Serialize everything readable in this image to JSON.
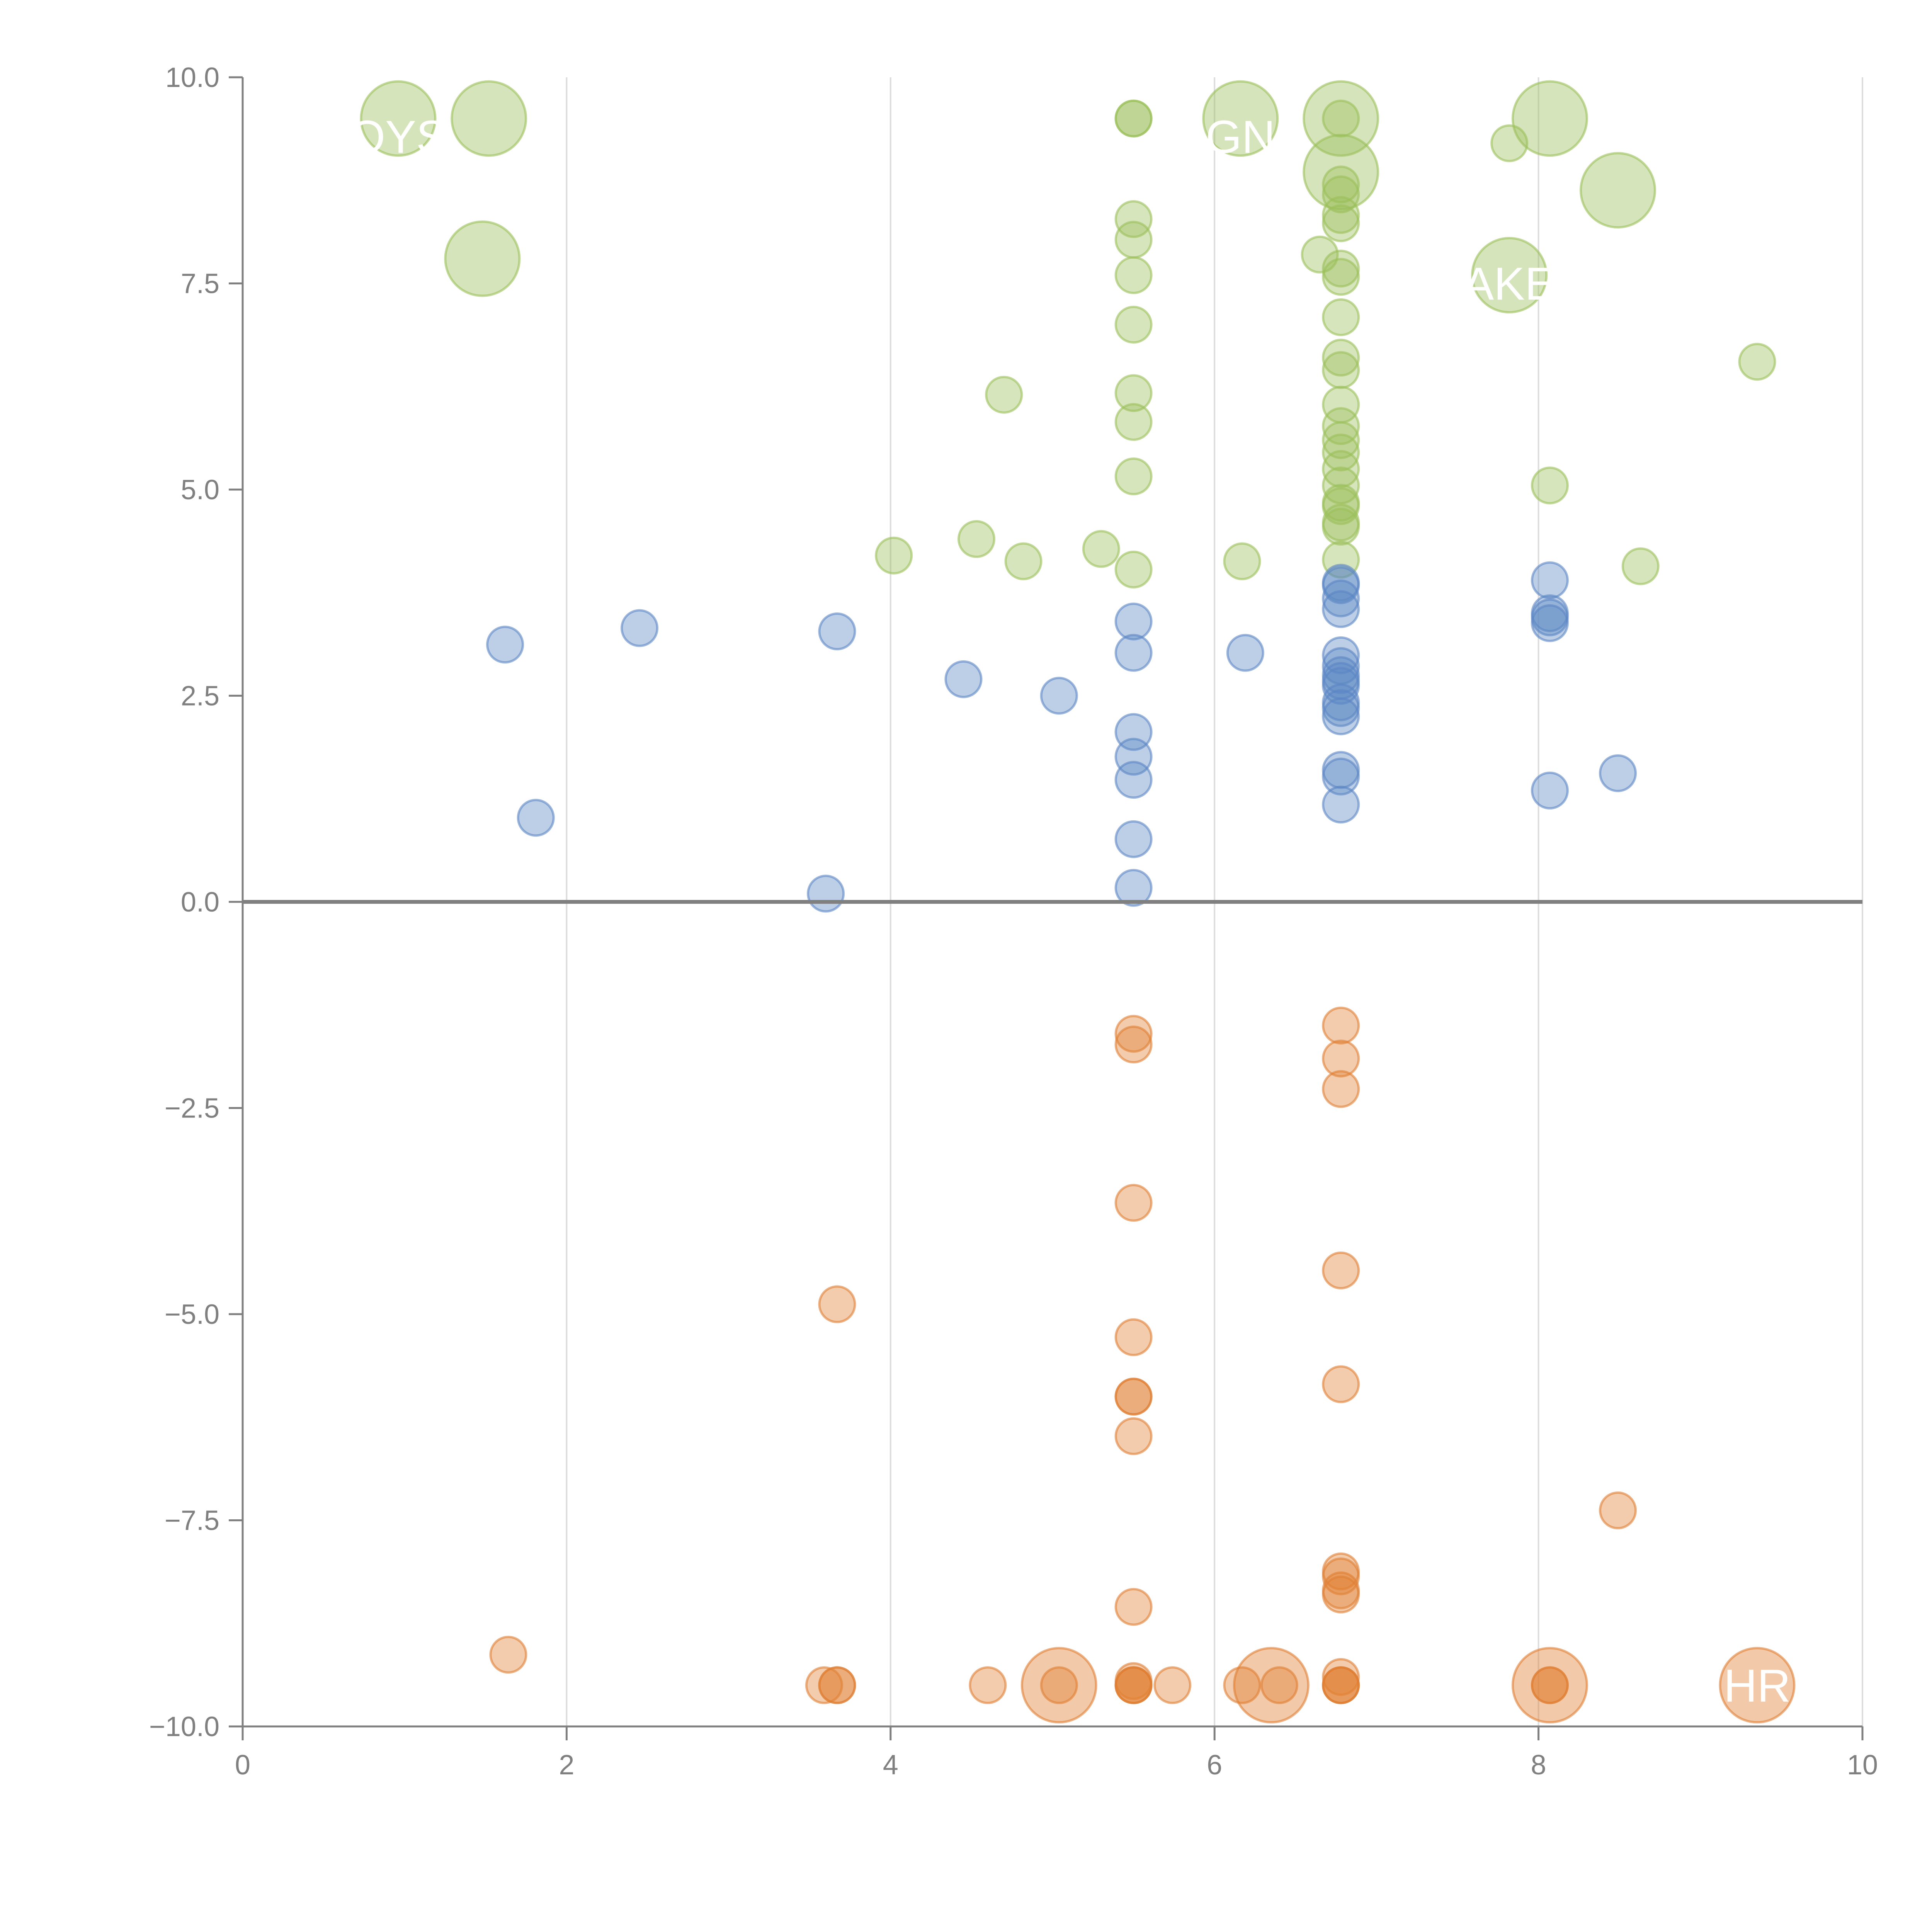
{
  "chart_data": {
    "type": "scatter",
    "title": "",
    "xlabel": "",
    "ylabel": "",
    "xlim": [
      0,
      10
    ],
    "ylim": [
      -10,
      10
    ],
    "x_ticks": [
      0,
      2,
      4,
      6,
      8,
      10
    ],
    "x_tick_labels": [
      "0",
      "2",
      "4",
      "6",
      "8",
      "10"
    ],
    "y_ticks": [
      -10,
      -7.5,
      -5,
      -2.5,
      0,
      2.5,
      5,
      7.5,
      10
    ],
    "y_tick_labels": [
      "−10.0",
      "−7.5",
      "−5.0",
      "−2.5",
      "0.0",
      "2.5",
      "5.0",
      "7.5",
      "10.0"
    ],
    "vertical_grid": true,
    "horizontal_grid": false,
    "zero_line": true,
    "legend": "none",
    "colors": {
      "green": "#9bbf5a",
      "blue": "#5b86c4",
      "orange": "#e07f33",
      "axis": "#808080",
      "grid": "#dddddd"
    },
    "series": [
      {
        "color": "green",
        "points": [
          [
            0.96,
            9.5,
            2
          ],
          [
            1.52,
            9.5,
            2
          ],
          [
            1.48,
            7.8,
            2
          ],
          [
            6.16,
            9.5,
            2
          ],
          [
            6.78,
            9.5,
            2
          ],
          [
            6.78,
            8.85,
            2
          ],
          [
            8.07,
            9.5,
            2
          ],
          [
            8.49,
            8.63,
            2
          ],
          [
            7.82,
            7.6,
            2
          ],
          [
            7.82,
            9.2,
            1
          ],
          [
            5.5,
            9.5,
            1
          ],
          [
            5.5,
            9.5,
            1
          ],
          [
            5.5,
            8.28,
            1
          ],
          [
            5.5,
            8.03,
            1
          ],
          [
            5.5,
            7.6,
            1
          ],
          [
            5.5,
            7.0,
            1
          ],
          [
            5.5,
            6.17,
            1
          ],
          [
            5.5,
            5.82,
            1
          ],
          [
            5.5,
            5.16,
            1
          ],
          [
            5.5,
            4.03,
            1
          ],
          [
            6.78,
            9.5,
            1
          ],
          [
            6.78,
            8.7,
            1
          ],
          [
            6.78,
            8.58,
            1
          ],
          [
            6.78,
            8.33,
            1
          ],
          [
            6.78,
            8.23,
            1
          ],
          [
            6.78,
            7.68,
            1
          ],
          [
            6.78,
            7.58,
            1
          ],
          [
            6.78,
            7.09,
            1
          ],
          [
            6.78,
            6.6,
            1
          ],
          [
            6.78,
            6.45,
            1
          ],
          [
            6.78,
            6.03,
            1
          ],
          [
            6.78,
            5.77,
            1
          ],
          [
            6.78,
            5.6,
            1
          ],
          [
            6.78,
            5.45,
            1
          ],
          [
            6.78,
            5.25,
            1
          ],
          [
            6.78,
            5.05,
            1
          ],
          [
            6.78,
            4.84,
            1
          ],
          [
            6.78,
            4.8,
            1
          ],
          [
            6.78,
            4.6,
            1
          ],
          [
            6.78,
            4.55,
            1
          ],
          [
            6.78,
            4.15,
            1
          ],
          [
            6.65,
            7.85,
            1
          ],
          [
            4.7,
            6.15,
            1
          ],
          [
            4.02,
            4.2,
            1
          ],
          [
            4.53,
            4.4,
            1
          ],
          [
            4.82,
            4.13,
            1
          ],
          [
            5.3,
            4.28,
            1
          ],
          [
            6.17,
            4.13,
            1
          ],
          [
            8.07,
            5.05,
            1
          ],
          [
            8.63,
            4.07,
            1
          ],
          [
            9.35,
            6.55,
            1
          ]
        ]
      },
      {
        "color": "blue",
        "points": [
          [
            1.62,
            3.12,
            1
          ],
          [
            1.81,
            1.02,
            1
          ],
          [
            2.45,
            3.32,
            1
          ],
          [
            3.67,
            3.28,
            1
          ],
          [
            3.6,
            0.1,
            1
          ],
          [
            4.45,
            2.7,
            1
          ],
          [
            5.04,
            2.5,
            1
          ],
          [
            5.5,
            3.4,
            1
          ],
          [
            5.5,
            3.02,
            1
          ],
          [
            5.5,
            2.06,
            1
          ],
          [
            5.5,
            1.76,
            1
          ],
          [
            5.5,
            1.48,
            1
          ],
          [
            5.5,
            0.76,
            1
          ],
          [
            5.5,
            0.17,
            1
          ],
          [
            6.19,
            3.02,
            1
          ],
          [
            6.78,
            3.87,
            1
          ],
          [
            6.78,
            3.84,
            1
          ],
          [
            6.78,
            3.68,
            1
          ],
          [
            6.78,
            3.55,
            1
          ],
          [
            6.78,
            2.99,
            1
          ],
          [
            6.78,
            2.86,
            1
          ],
          [
            6.78,
            2.75,
            1
          ],
          [
            6.78,
            2.68,
            1
          ],
          [
            6.78,
            2.62,
            1
          ],
          [
            6.78,
            2.42,
            1
          ],
          [
            6.78,
            2.35,
            1
          ],
          [
            6.78,
            2.25,
            1
          ],
          [
            6.78,
            1.6,
            1
          ],
          [
            6.78,
            1.52,
            1
          ],
          [
            6.78,
            1.18,
            1
          ],
          [
            8.07,
            3.9,
            1
          ],
          [
            8.07,
            3.5,
            1
          ],
          [
            8.07,
            3.45,
            1
          ],
          [
            8.07,
            3.38,
            1
          ],
          [
            8.07,
            1.35,
            1
          ],
          [
            8.49,
            1.56,
            1
          ]
        ]
      },
      {
        "color": "orange",
        "points": [
          [
            5.04,
            -9.5,
            2
          ],
          [
            6.35,
            -9.5,
            2
          ],
          [
            8.07,
            -9.5,
            2
          ],
          [
            9.35,
            -9.5,
            2
          ],
          [
            1.64,
            -9.13,
            1
          ],
          [
            3.59,
            -9.5,
            1
          ],
          [
            3.67,
            -9.5,
            1
          ],
          [
            3.67,
            -9.5,
            1
          ],
          [
            3.67,
            -4.88,
            1
          ],
          [
            4.6,
            -9.5,
            1
          ],
          [
            5.04,
            -9.5,
            1
          ],
          [
            5.5,
            -1.6,
            1
          ],
          [
            5.5,
            -1.73,
            1
          ],
          [
            5.5,
            -3.65,
            1
          ],
          [
            5.5,
            -5.28,
            1
          ],
          [
            5.5,
            -6.0,
            1
          ],
          [
            5.5,
            -6.0,
            1
          ],
          [
            5.5,
            -6.48,
            1
          ],
          [
            5.5,
            -8.55,
            1
          ],
          [
            5.5,
            -9.45,
            1
          ],
          [
            5.5,
            -9.5,
            1
          ],
          [
            5.5,
            -9.5,
            1
          ],
          [
            5.5,
            -9.5,
            1
          ],
          [
            5.74,
            -9.5,
            1
          ],
          [
            6.17,
            -9.5,
            1
          ],
          [
            6.4,
            -9.5,
            1
          ],
          [
            6.78,
            -1.5,
            1
          ],
          [
            6.78,
            -1.9,
            1
          ],
          [
            6.78,
            -2.27,
            1
          ],
          [
            6.78,
            -4.47,
            1
          ],
          [
            6.78,
            -5.85,
            1
          ],
          [
            6.78,
            -8.12,
            1
          ],
          [
            6.78,
            -8.18,
            1
          ],
          [
            6.78,
            -8.35,
            1
          ],
          [
            6.78,
            -8.4,
            1
          ],
          [
            6.78,
            -9.4,
            1
          ],
          [
            6.78,
            -9.5,
            1
          ],
          [
            6.78,
            -9.5,
            1
          ],
          [
            6.78,
            -9.5,
            1
          ],
          [
            8.07,
            -9.5,
            1
          ],
          [
            8.07,
            -9.5,
            1
          ],
          [
            8.49,
            -7.38,
            1
          ]
        ]
      }
    ],
    "annotations": [
      {
        "text": "OYS",
        "x": 0.96,
        "y": 9.28
      },
      {
        "text": "GN",
        "x": 6.16,
        "y": 9.28
      },
      {
        "text": "AKE",
        "x": 7.82,
        "y": 7.5
      },
      {
        "text": "HR",
        "x": 9.35,
        "y": -9.5
      }
    ]
  }
}
